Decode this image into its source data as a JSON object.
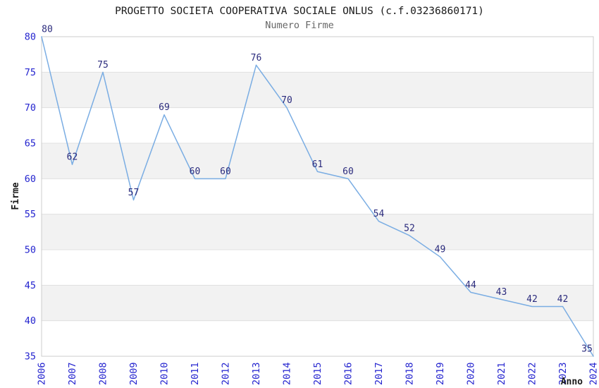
{
  "chart_data": {
    "type": "line",
    "title": "PROGETTO SOCIETA COOPERATIVA SOCIALE ONLUS (c.f.03236860171)",
    "subtitle": "Numero Firme",
    "xlabel": "Anno",
    "ylabel": "Firme",
    "x": [
      2006,
      2007,
      2008,
      2009,
      2010,
      2011,
      2012,
      2013,
      2014,
      2015,
      2016,
      2017,
      2018,
      2019,
      2020,
      2021,
      2022,
      2023,
      2024
    ],
    "values": [
      80,
      62,
      75,
      57,
      69,
      60,
      60,
      76,
      70,
      61,
      60,
      54,
      52,
      49,
      44,
      43,
      42,
      42,
      35
    ],
    "ylim": [
      35,
      80
    ],
    "ytick_step": 5,
    "yticks": [
      35,
      40,
      45,
      50,
      55,
      60,
      65,
      70,
      75,
      80
    ],
    "grid": true,
    "legend": "none",
    "band_pattern": "alternating gray stripes of 5 units, gray on 40-45, 50-55, 60-65, 70-75",
    "colors": {
      "line": "#7aade3",
      "tick_labels": "#2424cf",
      "point_labels": "#2b2b7d",
      "band": "#f2f2f2",
      "gridline": "#e0e0e0",
      "border": "#cccccc",
      "title": "#1a1a1a",
      "subtitle": "#666666"
    }
  }
}
